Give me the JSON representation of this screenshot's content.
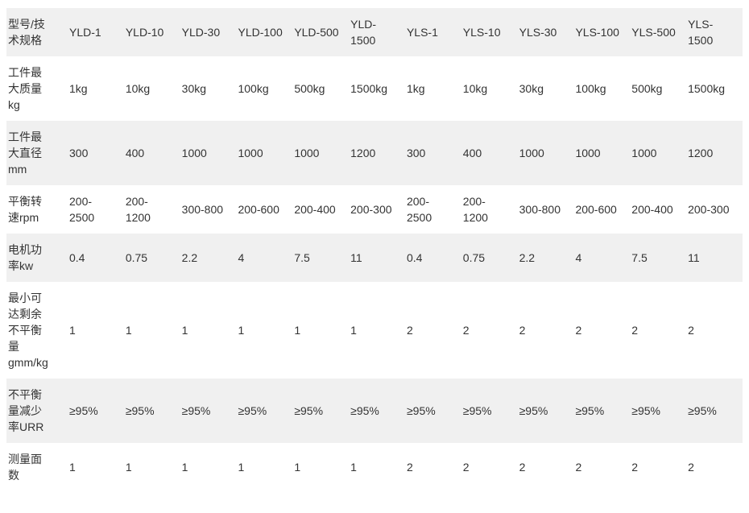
{
  "table": {
    "corner_label": "型号/技术规格",
    "columns": [
      "YLD-1",
      "YLD-10",
      "YLD-30",
      "YLD-100",
      "YLD-500",
      "YLD-1500",
      "YLS-1",
      "YLS-10",
      "YLS-30",
      "YLS-100",
      "YLS-500",
      "YLS-1500"
    ],
    "rows": [
      {
        "label": "工件最大质量kg",
        "values": [
          "1kg",
          "10kg",
          "30kg",
          "100kg",
          "500kg",
          "1500kg",
          "1kg",
          "10kg",
          "30kg",
          "100kg",
          "500kg",
          "1500kg"
        ]
      },
      {
        "label": "工件最大直径mm",
        "values": [
          "300",
          "400",
          "1000",
          "1000",
          "1000",
          "1200",
          "300",
          "400",
          "1000",
          "1000",
          "1000",
          "1200"
        ]
      },
      {
        "label": "平衡转速rpm",
        "values": [
          "200-2500",
          "200-1200",
          "300-800",
          "200-600",
          "200-400",
          "200-300",
          "200-2500",
          "200-1200",
          "300-800",
          "200-600",
          "200-400",
          "200-300"
        ]
      },
      {
        "label": "电机功率kw",
        "values": [
          "0.4",
          "0.75",
          "2.2",
          "4",
          "7.5",
          "11",
          "0.4",
          "0.75",
          "2.2",
          "4",
          "7.5",
          "11"
        ]
      },
      {
        "label": "最小可达剩余不平衡量gmm/kg",
        "values": [
          "1",
          "1",
          "1",
          "1",
          "1",
          "1",
          "2",
          "2",
          "2",
          "2",
          "2",
          "2"
        ]
      },
      {
        "label": "不平衡量减少率URR",
        "values": [
          "≥95%",
          "≥95%",
          "≥95%",
          "≥95%",
          "≥95%",
          "≥95%",
          "≥95%",
          "≥95%",
          "≥95%",
          "≥95%",
          "≥95%",
          "≥95%"
        ]
      },
      {
        "label": "测量面数",
        "values": [
          "1",
          "1",
          "1",
          "1",
          "1",
          "1",
          "2",
          "2",
          "2",
          "2",
          "2",
          "2"
        ]
      }
    ],
    "colors": {
      "stripe": "#f0f0f0",
      "text": "#333333",
      "background": "#ffffff"
    }
  }
}
